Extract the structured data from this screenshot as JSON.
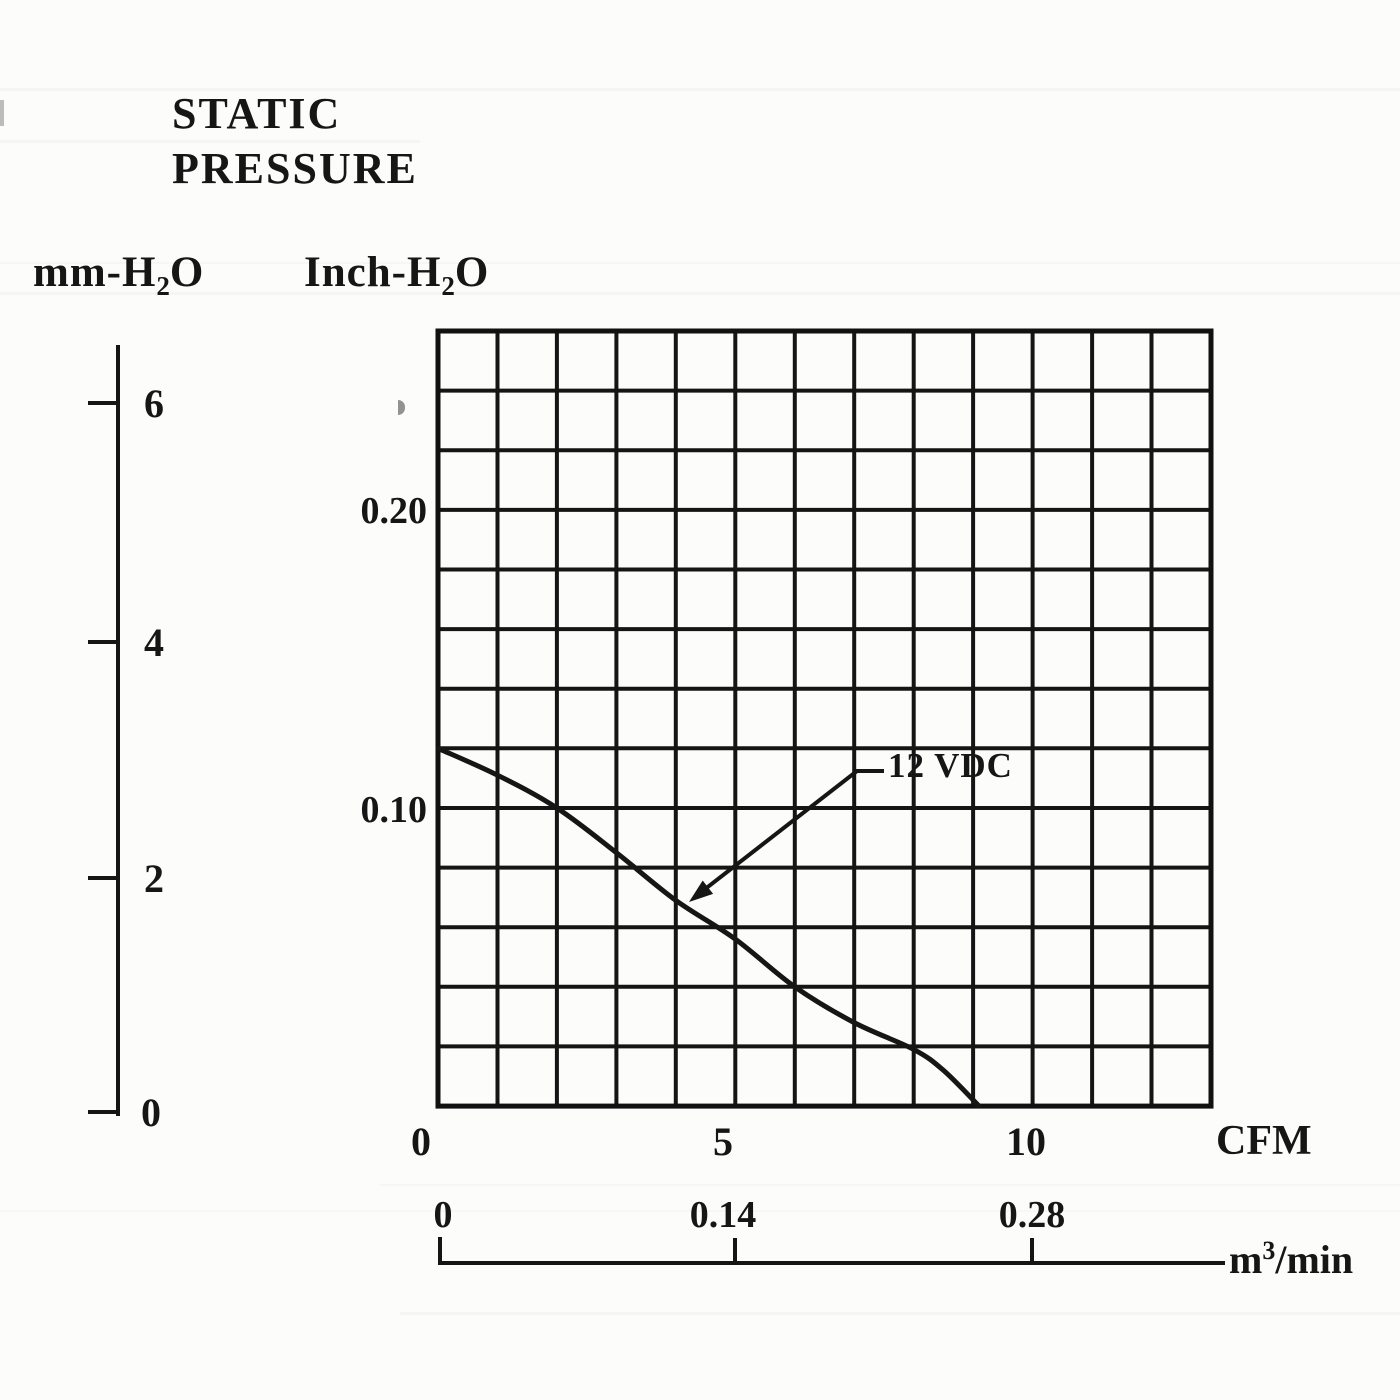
{
  "header": {
    "line1": "STATIC",
    "line2": "PRESSURE"
  },
  "axes": {
    "mm": {
      "label_pre": "mm-H",
      "label_sub": "2",
      "label_post": "O",
      "ticks": [
        "6",
        "4",
        "2",
        "0"
      ]
    },
    "inch": {
      "label_pre": "Inch-H",
      "label_sub": "2",
      "label_post": "O",
      "ticks": [
        "0.20",
        "0.10"
      ]
    },
    "cfm": {
      "ticks": [
        "0",
        "5",
        "10"
      ],
      "unit": "CFM"
    },
    "m3min": {
      "ticks": [
        "0",
        "0.14",
        "0.28"
      ],
      "unit_pre": "m",
      "unit_sup": "3",
      "unit_post": "/min"
    }
  },
  "chart_data": {
    "type": "line",
    "title": "STATIC PRESSURE",
    "xlabel": "CFM",
    "x2label": "m3/min",
    "ylabel_left": "mm-H2O",
    "ylabel_right": "Inch-H2O",
    "grid": {
      "on": true,
      "cols": 13,
      "rows": 13,
      "cell_cfm": 1,
      "cell_inch": 0.02
    },
    "xlim_cfm": [
      0,
      13
    ],
    "ylim_inch": [
      0,
      0.26
    ],
    "x_ticks_cfm": [
      0,
      5,
      10
    ],
    "x2_ticks_m3min": [
      0,
      0.14,
      0.28
    ],
    "y_ticks_inch": [
      0.1,
      0.2
    ],
    "y_ticks_mm": [
      0,
      2,
      4,
      6
    ],
    "annotation": {
      "label": "12 VDC",
      "points_to_cfm": 4.2
    },
    "series": [
      {
        "name": "12 VDC",
        "x_cfm": [
          0,
          1,
          2,
          3,
          4,
          5,
          6,
          7,
          8,
          8.5,
          9.1
        ],
        "y_inch_h2o": [
          0.12,
          0.111,
          0.1,
          0.085,
          0.069,
          0.056,
          0.04,
          0.028,
          0.019,
          0.012,
          0.0
        ]
      }
    ]
  }
}
